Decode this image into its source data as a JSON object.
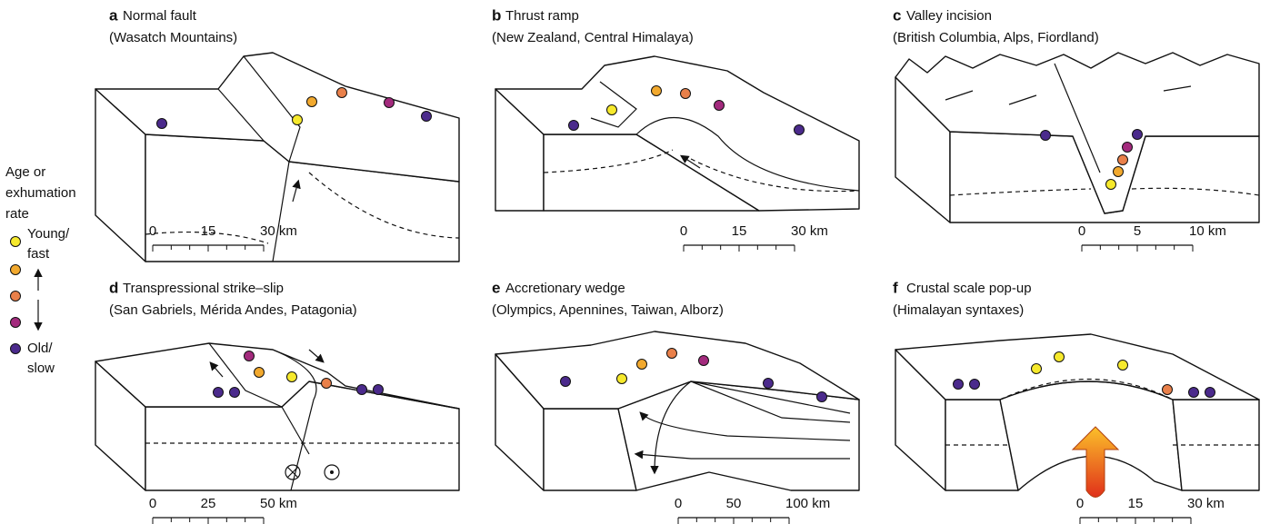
{
  "legend": {
    "title": [
      "Age or",
      "exhumation",
      "rate"
    ],
    "young": [
      "Young/",
      "fast"
    ],
    "old": [
      "Old/",
      "slow"
    ]
  },
  "panels": [
    {
      "letter": "a",
      "title": "Normal fault",
      "subtitle": "(Wasatch Mountains)",
      "scale": [
        "0",
        "15",
        "30 km"
      ]
    },
    {
      "letter": "b",
      "title": "Thrust ramp",
      "subtitle": "(New Zealand, Central Himalaya)",
      "scale": [
        "0",
        "15",
        "30 km"
      ]
    },
    {
      "letter": "c",
      "title": "Valley incision",
      "subtitle": "(British Columbia, Alps, Fiordland)",
      "scale": [
        "0",
        "5",
        "10 km"
      ]
    },
    {
      "letter": "d",
      "title": "Transpressional strike–slip",
      "subtitle": "(San Gabriels, Mérida Andes, Patagonia)",
      "scale": [
        "0",
        "25",
        "50 km"
      ]
    },
    {
      "letter": "e",
      "title": "Accretionary wedge",
      "subtitle": "(Olympics, Apennines, Taiwan, Alborz)",
      "scale": [
        "0",
        "50",
        "100 km"
      ]
    },
    {
      "letter": "f",
      "title": "Crustal scale pop-up",
      "subtitle": "(Himalayan syntaxes)",
      "scale": [
        "0",
        "15",
        "30 km"
      ]
    }
  ]
}
